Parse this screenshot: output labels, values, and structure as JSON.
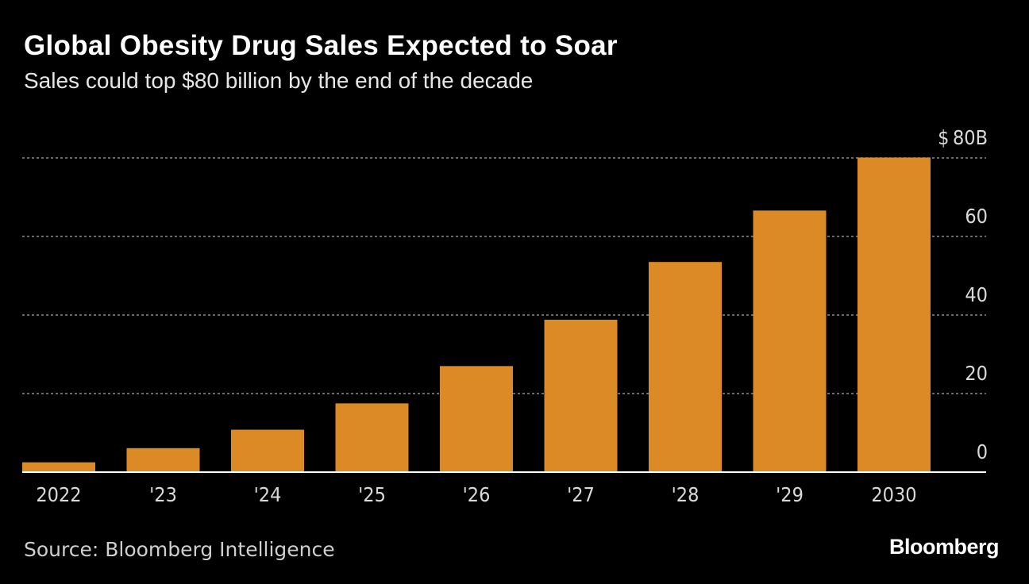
{
  "header": {
    "title": "Global Obesity Drug Sales Expected to Soar",
    "subtitle": "Sales could top $80 billion by the end of the decade"
  },
  "footer": {
    "source": "Source: Bloomberg Intelligence",
    "brand": "Bloomberg"
  },
  "chart_data": {
    "type": "bar",
    "categories": [
      "2022",
      "'23",
      "'24",
      "'25",
      "'26",
      "'27",
      "'28",
      "'29",
      "2030"
    ],
    "values": [
      2.5,
      6.1,
      10.8,
      17.5,
      27.0,
      38.8,
      53.5,
      66.6,
      80.1
    ],
    "ylim": [
      0,
      80
    ],
    "yticks": [
      0,
      20,
      40,
      60,
      80
    ],
    "ytick_labels": [
      "0",
      "20",
      "40",
      "60",
      "$ 80B"
    ],
    "y_axis_position": "right",
    "grid": true,
    "colors": {
      "bar": "#dc8a25",
      "background": "#000000",
      "grid": "#8c8c8c",
      "baseline": "#ffffff"
    }
  }
}
